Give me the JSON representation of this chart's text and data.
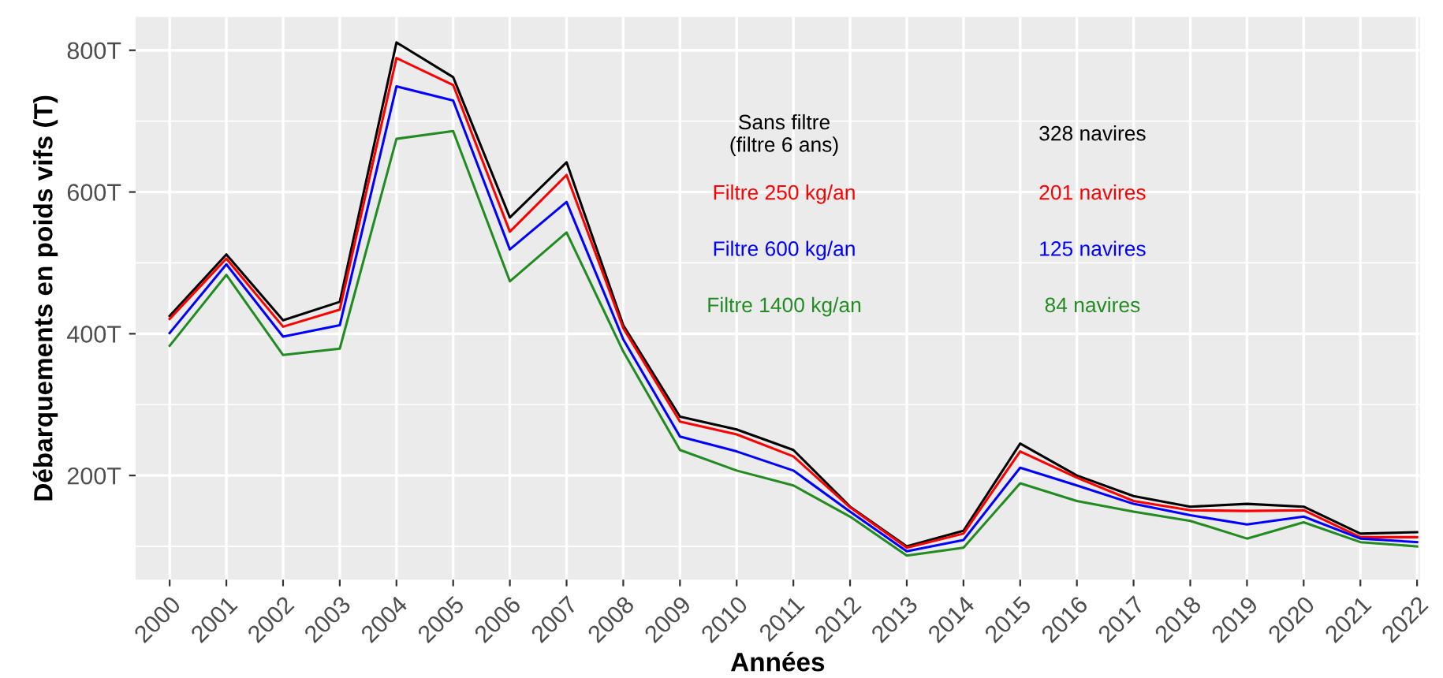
{
  "chart_data": {
    "type": "line",
    "xlabel": "Années",
    "ylabel": "Débarquements en poids vifs (T)",
    "x": [
      2000,
      2001,
      2002,
      2003,
      2004,
      2005,
      2006,
      2007,
      2008,
      2009,
      2010,
      2011,
      2012,
      2013,
      2014,
      2015,
      2016,
      2017,
      2018,
      2019,
      2020,
      2021,
      2022
    ],
    "series": [
      {
        "name": "Sans filtre\n(filtre 6 ans)",
        "color": "#000000",
        "values": [
          425,
          512,
          419,
          445,
          811,
          762,
          564,
          642,
          412,
          283,
          265,
          236,
          156,
          100,
          122,
          245,
          200,
          171,
          156,
          160,
          156,
          118,
          120
        ]
      },
      {
        "name": "Filtre 250 kg/an",
        "color": "#ff0000",
        "values": [
          421,
          506,
          410,
          434,
          789,
          751,
          544,
          624,
          408,
          276,
          258,
          227,
          155,
          98,
          118,
          234,
          197,
          164,
          151,
          150,
          151,
          113,
          113
        ]
      },
      {
        "name": "Filtre 600 kg/an",
        "color": "#0000ff",
        "values": [
          401,
          498,
          396,
          412,
          749,
          729,
          519,
          586,
          392,
          255,
          234,
          207,
          149,
          93,
          109,
          211,
          186,
          160,
          144,
          131,
          142,
          111,
          106
        ]
      },
      {
        "name": "Filtre 1400 kg/an",
        "color": "#228b22",
        "values": [
          383,
          483,
          370,
          379,
          675,
          686,
          474,
          543,
          375,
          236,
          207,
          186,
          142,
          87,
          98,
          189,
          164,
          149,
          136,
          111,
          134,
          106,
          100
        ]
      }
    ],
    "annotations": [
      "328 navires",
      "201 navires",
      "125 navires",
      "84 navires"
    ],
    "xlim": [
      1999.4,
      2022.05
    ],
    "xticks": [
      2000,
      2001,
      2002,
      2003,
      2004,
      2005,
      2006,
      2007,
      2008,
      2009,
      2010,
      2011,
      2012,
      2013,
      2014,
      2015,
      2016,
      2017,
      2018,
      2019,
      2020,
      2021,
      2022
    ],
    "ylim": [
      53,
      847
    ],
    "yticks": [
      {
        "value": 200,
        "label": "200T"
      },
      {
        "value": 400,
        "label": "400T"
      },
      {
        "value": 600,
        "label": "600T"
      },
      {
        "value": 800,
        "label": "800T"
      }
    ],
    "grid": true,
    "line_style": "solid"
  }
}
